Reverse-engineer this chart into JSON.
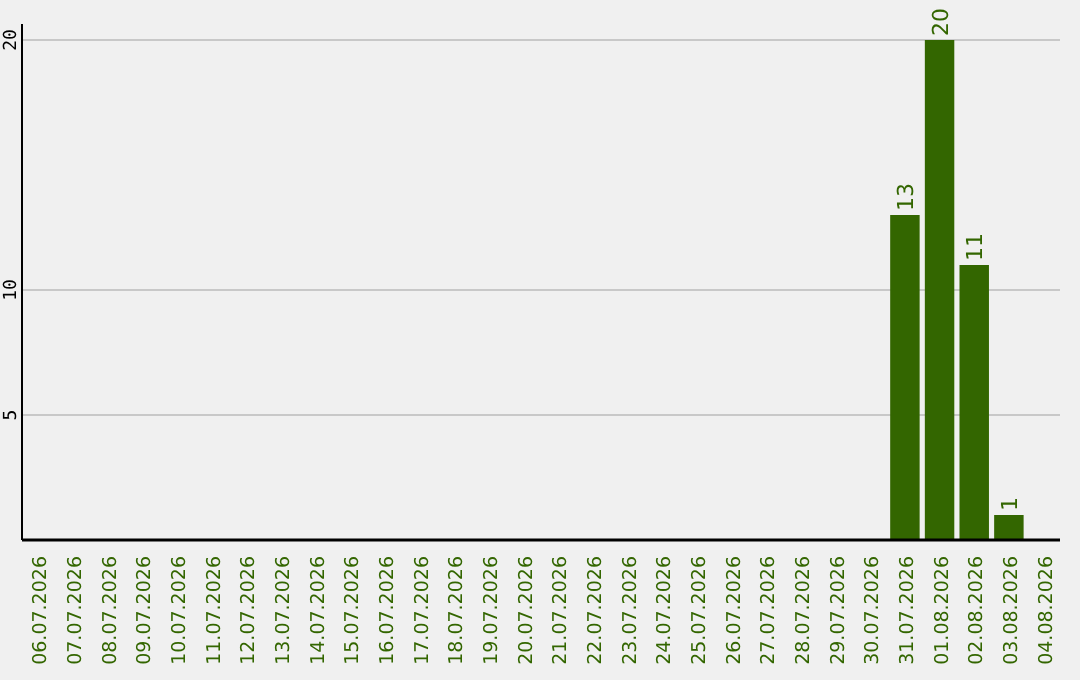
{
  "chart_data": {
    "type": "bar",
    "categories": [
      "06.07.2026",
      "07.07.2026",
      "08.07.2026",
      "09.07.2026",
      "10.07.2026",
      "11.07.2026",
      "12.07.2026",
      "13.07.2026",
      "14.07.2026",
      "15.07.2026",
      "16.07.2026",
      "17.07.2026",
      "18.07.2026",
      "19.07.2026",
      "20.07.2026",
      "21.07.2026",
      "22.07.2026",
      "23.07.2026",
      "24.07.2026",
      "25.07.2026",
      "26.07.2026",
      "27.07.2026",
      "28.07.2026",
      "29.07.2026",
      "30.07.2026",
      "31.07.2026",
      "01.08.2026",
      "02.08.2026",
      "03.08.2026",
      "04.08.2026"
    ],
    "values": [
      null,
      null,
      null,
      null,
      null,
      null,
      null,
      null,
      null,
      null,
      null,
      null,
      null,
      null,
      null,
      null,
      null,
      null,
      null,
      null,
      null,
      null,
      null,
      null,
      null,
      13,
      20,
      11,
      1,
      null
    ],
    "color": "#336600",
    "ylim": [
      0,
      20
    ],
    "yticks": [
      5,
      10,
      20
    ],
    "grid": "y",
    "data_labels": true
  }
}
